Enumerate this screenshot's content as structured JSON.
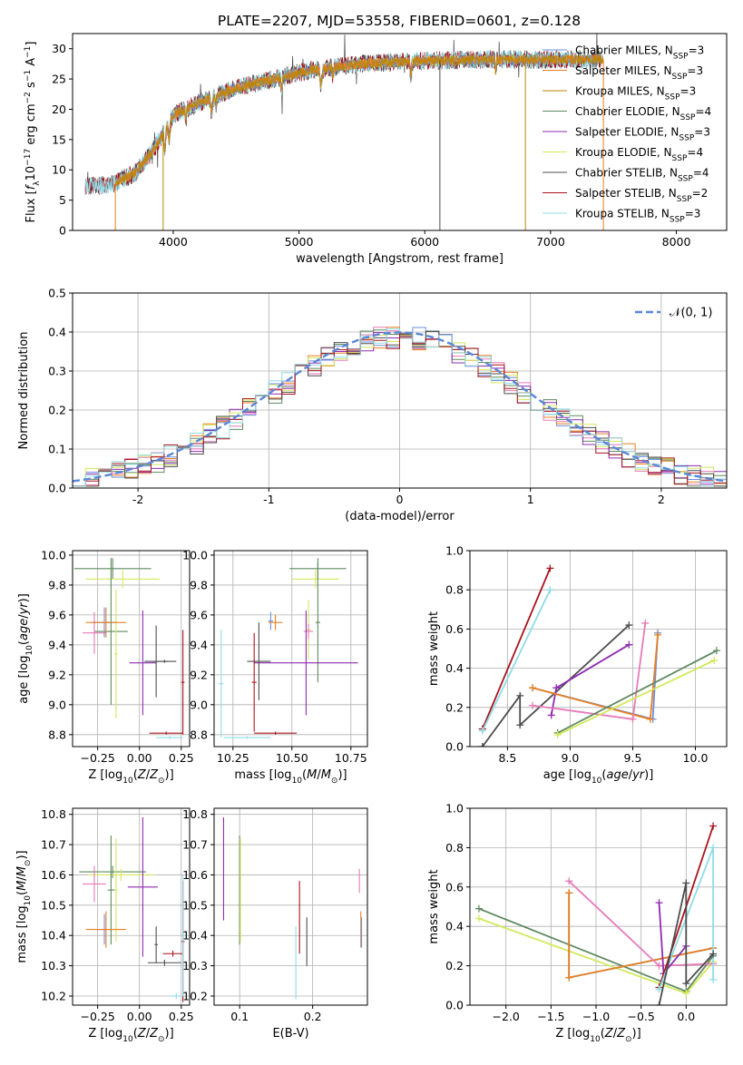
{
  "figure": {
    "title": "PLATE=2207, MJD=53558, FIBERID=0601, z=0.128"
  },
  "colors": {
    "chabrier_miles": "#6b8fe0",
    "salpeter_miles": "#e87f1f",
    "kroupa_miles": "#b8860b",
    "chabrier_elodie": "#5f8a5f",
    "salpeter_elodie": "#8e2bb0",
    "kroupa_elodie": "#d2e85a",
    "chabrier_stelib": "#4d4d4d",
    "salpeter_stelib": "#a8141c",
    "kroupa_stelib": "#8fdce6",
    "pink": "#e77ab8",
    "normal_curve": "#5b87d6"
  },
  "chart_data": [
    {
      "id": "spectrum",
      "type": "line",
      "xlabel": "wavelength [Angstrom, rest frame]",
      "ylabel": "Flux [f_λ 10^-17 erg cm^-2 s^-1 A^-1]",
      "xlim": [
        3200,
        8400
      ],
      "ylim": [
        0,
        32.5
      ],
      "xticks": [
        4000,
        5000,
        6000,
        7000,
        8000
      ],
      "yticks": [
        0,
        5,
        10,
        15,
        20,
        25,
        30
      ],
      "grid": false,
      "legend_position": "right",
      "continuum": {
        "x": [
          3300,
          3500,
          3700,
          3850,
          4000,
          4200,
          4500,
          4800,
          5100,
          5500,
          6000,
          6500,
          7000,
          7400
        ],
        "y": [
          7.3,
          7.5,
          9.5,
          13.5,
          19,
          21,
          23.5,
          25,
          26.5,
          27.5,
          28,
          28.2,
          28.2,
          28.3
        ]
      },
      "series": [
        {
          "name": "Chabrier MILES, N_SSP=3",
          "color_key": "chabrier_miles",
          "xmin": 3540,
          "xmax": 7420
        },
        {
          "name": "Salpeter MILES, N_SSP=3",
          "color_key": "salpeter_miles",
          "xmin": 3540,
          "xmax": 7420
        },
        {
          "name": "Kroupa MILES, N_SSP=3",
          "color_key": "kroupa_miles",
          "xmin": 3540,
          "xmax": 7420
        },
        {
          "name": "Chabrier ELODIE, N_SSP=4",
          "color_key": "chabrier_elodie",
          "xmin": 3920,
          "xmax": 6800
        },
        {
          "name": "Salpeter ELODIE, N_SSP=3",
          "color_key": "salpeter_elodie",
          "xmin": 3920,
          "xmax": 6800
        },
        {
          "name": "Kroupa ELODIE, N_SSP=4",
          "color_key": "kroupa_elodie",
          "xmin": 3920,
          "xmax": 6800
        },
        {
          "name": "Chabrier STELIB, N_SSP=4",
          "color_key": "chabrier_stelib",
          "xmin": 3300,
          "xmax": 7400
        },
        {
          "name": "Salpeter STELIB, N_SSP=2",
          "color_key": "salpeter_stelib",
          "xmin": 3300,
          "xmax": 7400
        },
        {
          "name": "Kroupa STELIB, N_SSP=3",
          "color_key": "kroupa_stelib",
          "xmin": 3300,
          "xmax": 7400
        }
      ],
      "vertical_drops": [
        {
          "x": 3540,
          "color_key": "salpeter_miles"
        },
        {
          "x": 3920,
          "color_key": "kroupa_miles"
        },
        {
          "x": 6120,
          "color_key": "chabrier_stelib"
        },
        {
          "x": 6800,
          "color_key": "kroupa_miles"
        },
        {
          "x": 7420,
          "color_key": "salpeter_miles"
        }
      ]
    },
    {
      "id": "residuals",
      "type": "area",
      "xlabel": "(data-model)/error",
      "ylabel": "Normed distribution",
      "xlim": [
        -2.5,
        2.5
      ],
      "ylim": [
        0,
        0.5
      ],
      "xticks": [
        -2,
        -1,
        0,
        1,
        2
      ],
      "yticks": [
        0.0,
        0.1,
        0.2,
        0.3,
        0.4,
        0.5
      ],
      "grid": true,
      "legend_position": "top-right",
      "legend_label": "𝒩(0, 1)",
      "bin_width": 0.1,
      "n_histograms": 9
    },
    {
      "id": "age_vs_Z",
      "type": "scatter",
      "xlabel": "Z [log10(Z/Z⊙)]",
      "ylabel": "age [log10(age/yr)]",
      "xlim": [
        -0.4,
        0.3
      ],
      "ylim": [
        8.72,
        10.03
      ],
      "xticks": [
        -0.25,
        0.0,
        0.25
      ],
      "xticklabels": [
        "−0.25",
        "0.00",
        "0.25"
      ],
      "yticks": [
        8.8,
        9.0,
        9.2,
        9.4,
        9.6,
        9.8,
        10.0
      ],
      "grid": true,
      "crosses": [
        {
          "x": -0.16,
          "xerr": 0.23,
          "y": 9.91,
          "yerr": 0.07,
          "color_key": "chabrier_elodie"
        },
        {
          "x": -0.1,
          "xerr": 0.22,
          "y": 9.84,
          "yerr": 0.06,
          "color_key": "kroupa_elodie"
        },
        {
          "x": -0.17,
          "xerr": 0.1,
          "y": 9.49,
          "yerr": 0.49,
          "color_key": "chabrier_elodie"
        },
        {
          "x": -0.14,
          "xerr": 0.01,
          "y": 9.34,
          "yerr": 0.43,
          "color_key": "kroupa_elodie"
        },
        {
          "x": -0.27,
          "xerr": 0.07,
          "y": 9.48,
          "yerr": 0.14,
          "color_key": "pink"
        },
        {
          "x": -0.21,
          "xerr": 0.07,
          "y": 9.55,
          "yerr": 0.1,
          "color_key": "chabrier_miles"
        },
        {
          "x": -0.2,
          "xerr": 0.12,
          "y": 9.55,
          "yerr": 0.1,
          "color_key": "salpeter_miles"
        },
        {
          "x": 0.02,
          "xerr": 0.08,
          "y": 9.28,
          "yerr": 0.35,
          "color_key": "salpeter_elodie"
        },
        {
          "x": 0.1,
          "xerr": 0.07,
          "y": 9.29,
          "yerr": 0.24,
          "color_key": "chabrier_stelib"
        },
        {
          "x": 0.15,
          "xerr": 0.07,
          "y": 9.29,
          "yerr": 0.01,
          "color_key": "chabrier_stelib"
        },
        {
          "x": 0.26,
          "xerr": 0.01,
          "y": 9.15,
          "yerr": 0.35,
          "color_key": "salpeter_stelib"
        },
        {
          "x": 0.16,
          "xerr": 0.1,
          "y": 8.81,
          "yerr": 0.01,
          "color_key": "salpeter_stelib"
        },
        {
          "x": 0.18,
          "xerr": 0.08,
          "y": 8.78,
          "yerr": 0.01,
          "color_key": "kroupa_stelib"
        }
      ]
    },
    {
      "id": "age_vs_mass",
      "type": "scatter",
      "xlabel": "mass [log10(M/M⊙)]",
      "ylabel": "",
      "xlim": [
        10.17,
        10.82
      ],
      "ylim": [
        8.72,
        10.03
      ],
      "xticks": [
        10.25,
        10.5,
        10.75
      ],
      "xticklabels": [
        "10.25",
        "10.50",
        "10.75"
      ],
      "yticks": [
        8.8,
        9.0,
        9.2,
        9.4,
        9.6,
        9.8,
        10.0
      ],
      "grid": true,
      "crosses": [
        {
          "x": 10.61,
          "xerr": 0.12,
          "y": 9.91,
          "yerr": 0.07,
          "color_key": "chabrier_elodie"
        },
        {
          "x": 10.6,
          "xerr": 0.1,
          "y": 9.84,
          "yerr": 0.06,
          "color_key": "kroupa_elodie"
        },
        {
          "x": 10.61,
          "xerr": 0.01,
          "y": 9.55,
          "yerr": 0.4,
          "color_key": "chabrier_elodie"
        },
        {
          "x": 10.57,
          "xerr": 0.01,
          "y": 9.5,
          "yerr": 0.2,
          "color_key": "kroupa_elodie"
        },
        {
          "x": 10.57,
          "xerr": 0.02,
          "y": 9.49,
          "yerr": 0.05,
          "color_key": "pink"
        },
        {
          "x": 10.41,
          "xerr": 0.01,
          "y": 9.56,
          "yerr": 0.06,
          "color_key": "chabrier_miles"
        },
        {
          "x": 10.43,
          "xerr": 0.03,
          "y": 9.55,
          "yerr": 0.05,
          "color_key": "salpeter_miles"
        },
        {
          "x": 10.56,
          "xerr": 0.22,
          "y": 9.28,
          "yerr": 0.35,
          "color_key": "salpeter_elodie"
        },
        {
          "x": 10.36,
          "xerr": 0.05,
          "y": 9.29,
          "yerr": 0.26,
          "color_key": "chabrier_stelib"
        },
        {
          "x": 10.34,
          "xerr": 0.01,
          "y": 9.15,
          "yerr": 0.33,
          "color_key": "salpeter_stelib"
        },
        {
          "x": 10.43,
          "xerr": 0.09,
          "y": 8.81,
          "yerr": 0.01,
          "color_key": "salpeter_stelib"
        },
        {
          "x": 10.2,
          "xerr": 0.01,
          "y": 9.14,
          "yerr": 0.36,
          "color_key": "kroupa_stelib"
        },
        {
          "x": 10.31,
          "xerr": 0.1,
          "y": 8.78,
          "yerr": 0.01,
          "color_key": "kroupa_stelib"
        }
      ]
    },
    {
      "id": "weight_vs_age",
      "type": "line",
      "xlabel": "age [log10(age/yr)]",
      "ylabel": "mass weight",
      "xlim": [
        8.2,
        10.25
      ],
      "ylim": [
        0,
        1
      ],
      "xticks": [
        8.5,
        9.0,
        9.5,
        10.0
      ],
      "xticklabels": [
        "8.5",
        "9.0",
        "9.5",
        "10.0"
      ],
      "yticks": [
        0.0,
        0.2,
        0.4,
        0.6,
        0.8,
        1.0
      ],
      "grid": true,
      "series": [
        {
          "color_key": "salpeter_stelib",
          "x": [
            8.3,
            8.84
          ],
          "y": [
            0.09,
            0.91
          ]
        },
        {
          "color_key": "kroupa_stelib",
          "x": [
            8.3,
            8.84
          ],
          "y": [
            0.08,
            0.8
          ]
        },
        {
          "color_key": "chabrier_stelib",
          "x": [
            8.3,
            8.6,
            8.6,
            9.47
          ],
          "y": [
            0.0,
            0.26,
            0.11,
            0.62
          ]
        },
        {
          "color_key": "salpeter_elodie",
          "x": [
            8.85,
            8.89,
            9.47
          ],
          "y": [
            0.16,
            0.3,
            0.52
          ]
        },
        {
          "color_key": "chabrier_miles",
          "x": [
            8.7,
            9.66,
            9.7
          ],
          "y": [
            0.3,
            0.14,
            0.58
          ]
        },
        {
          "color_key": "salpeter_miles",
          "x": [
            8.7,
            9.64,
            9.7
          ],
          "y": [
            0.3,
            0.14,
            0.57
          ]
        },
        {
          "color_key": "pink",
          "x": [
            8.7,
            9.5,
            9.6
          ],
          "y": [
            0.21,
            0.14,
            0.63
          ]
        },
        {
          "color_key": "chabrier_elodie",
          "x": [
            8.9,
            10.17
          ],
          "y": [
            0.07,
            0.49
          ]
        },
        {
          "color_key": "kroupa_elodie",
          "x": [
            8.9,
            10.15
          ],
          "y": [
            0.06,
            0.44
          ]
        }
      ]
    },
    {
      "id": "mass_vs_Z",
      "type": "scatter",
      "xlabel": "Z [log10(Z/Z⊙)]",
      "ylabel": "mass [log10(M/M⊙)]",
      "xlim": [
        -0.4,
        0.3
      ],
      "ylim": [
        10.17,
        10.82
      ],
      "xticks": [
        -0.25,
        0.0,
        0.25
      ],
      "xticklabels": [
        "−0.25",
        "0.00",
        "0.25"
      ],
      "yticks": [
        10.2,
        10.3,
        10.4,
        10.5,
        10.6,
        10.7,
        10.8
      ],
      "grid": true,
      "crosses": [
        {
          "x": -0.16,
          "xerr": 0.2,
          "y": 10.61,
          "yerr": 0.02,
          "color_key": "chabrier_elodie"
        },
        {
          "x": -0.11,
          "xerr": 0.2,
          "y": 10.6,
          "yerr": 0.02,
          "color_key": "kroupa_elodie"
        },
        {
          "x": -0.17,
          "xerr": 0.02,
          "y": 10.55,
          "yerr": 0.18,
          "color_key": "chabrier_elodie"
        },
        {
          "x": -0.14,
          "xerr": 0.01,
          "y": 10.55,
          "yerr": 0.17,
          "color_key": "kroupa_elodie"
        },
        {
          "x": -0.27,
          "xerr": 0.07,
          "y": 10.57,
          "yerr": 0.06,
          "color_key": "pink"
        },
        {
          "x": -0.21,
          "xerr": 0.05,
          "y": 10.42,
          "yerr": 0.05,
          "color_key": "chabrier_miles"
        },
        {
          "x": -0.2,
          "xerr": 0.12,
          "y": 10.42,
          "yerr": 0.06,
          "color_key": "salpeter_miles"
        },
        {
          "x": 0.02,
          "xerr": 0.09,
          "y": 10.56,
          "yerr": 0.23,
          "color_key": "salpeter_elodie"
        },
        {
          "x": 0.1,
          "xerr": 0.01,
          "y": 10.37,
          "yerr": 0.06,
          "color_key": "chabrier_stelib"
        },
        {
          "x": 0.15,
          "xerr": 0.1,
          "y": 10.31,
          "yerr": 0.01,
          "color_key": "chabrier_stelib"
        },
        {
          "x": 0.2,
          "xerr": 0.06,
          "y": 10.34,
          "yerr": 0.01,
          "color_key": "salpeter_stelib"
        },
        {
          "x": 0.26,
          "xerr": 0.01,
          "y": 10.38,
          "yerr": 0.2,
          "color_key": "salpeter_stelib"
        },
        {
          "x": 0.22,
          "xerr": 0.04,
          "y": 10.2,
          "yerr": 0.01,
          "color_key": "kroupa_stelib"
        },
        {
          "x": 0.26,
          "xerr": 0.01,
          "y": 10.4,
          "yerr": 0.2,
          "color_key": "kroupa_stelib"
        }
      ]
    },
    {
      "id": "mass_vs_ebv",
      "type": "scatter",
      "xlabel": "E(B-V)",
      "ylabel": "",
      "xlim": [
        0.065,
        0.275
      ],
      "ylim": [
        10.17,
        10.82
      ],
      "xticks": [
        0.1,
        0.2
      ],
      "xticklabels": [
        "0.1",
        "0.2"
      ],
      "yticks": [
        10.2,
        10.3,
        10.4,
        10.5,
        10.6,
        10.7,
        10.8
      ],
      "grid": true,
      "crosses": [
        {
          "x": 0.078,
          "xerr": 0.0,
          "y": 10.62,
          "yerr": 0.17,
          "color_key": "salpeter_elodie"
        },
        {
          "x": 0.1,
          "xerr": 0.0,
          "y": 10.55,
          "yerr": 0.18,
          "color_key": "chabrier_elodie"
        },
        {
          "x": 0.101,
          "xerr": 0.0,
          "y": 10.55,
          "yerr": 0.17,
          "color_key": "kroupa_elodie"
        },
        {
          "x": 0.177,
          "xerr": 0.0,
          "y": 10.31,
          "yerr": 0.12,
          "color_key": "kroupa_stelib"
        },
        {
          "x": 0.182,
          "xerr": 0.0,
          "y": 10.46,
          "yerr": 0.12,
          "color_key": "salpeter_stelib"
        },
        {
          "x": 0.192,
          "xerr": 0.0,
          "y": 10.38,
          "yerr": 0.08,
          "color_key": "chabrier_stelib"
        },
        {
          "x": 0.264,
          "xerr": 0.0,
          "y": 10.58,
          "yerr": 0.04,
          "color_key": "pink"
        },
        {
          "x": 0.266,
          "xerr": 0.0,
          "y": 10.42,
          "yerr": 0.06,
          "color_key": "salpeter_miles"
        },
        {
          "x": 0.267,
          "xerr": 0.0,
          "y": 10.41,
          "yerr": 0.05,
          "color_key": "chabrier_miles"
        }
      ]
    },
    {
      "id": "weight_vs_Z",
      "type": "line",
      "xlabel": "Z [log10(Z/Z⊙)]",
      "ylabel": "mass weight",
      "xlim": [
        -2.4,
        0.45
      ],
      "ylim": [
        0,
        1
      ],
      "xticks": [
        -2.0,
        -1.5,
        -1.0,
        -0.5,
        0.0
      ],
      "xticklabels": [
        "−2.0",
        "−1.5",
        "−1.0",
        "−0.5",
        "0.0"
      ],
      "yticks": [
        0.0,
        0.2,
        0.4,
        0.6,
        0.8,
        1.0
      ],
      "grid": true,
      "series": [
        {
          "color_key": "chabrier_elodie",
          "x": [
            -2.3,
            0.0,
            0.3
          ],
          "y": [
            0.49,
            0.07,
            0.25
          ]
        },
        {
          "color_key": "kroupa_elodie",
          "x": [
            -2.3,
            0.0,
            0.3
          ],
          "y": [
            0.44,
            0.06,
            0.22
          ]
        },
        {
          "color_key": "chabrier_miles",
          "x": [
            -1.3,
            -1.3,
            0.3
          ],
          "y": [
            0.57,
            0.14,
            0.29
          ]
        },
        {
          "color_key": "salpeter_miles",
          "x": [
            -1.3,
            -1.3,
            0.3
          ],
          "y": [
            0.57,
            0.14,
            0.29
          ]
        },
        {
          "color_key": "pink",
          "x": [
            -1.3,
            -0.3,
            0.3
          ],
          "y": [
            0.63,
            0.2,
            0.21
          ]
        },
        {
          "color_key": "salpeter_elodie",
          "x": [
            -0.3,
            -0.25,
            0.0
          ],
          "y": [
            0.52,
            0.16,
            0.3
          ]
        },
        {
          "color_key": "salpeter_stelib",
          "x": [
            -0.3,
            0.3
          ],
          "y": [
            0.09,
            0.91
          ]
        },
        {
          "color_key": "kroupa_stelib",
          "x": [
            -0.3,
            0.3,
            0.3
          ],
          "y": [
            0.08,
            0.8,
            0.13
          ]
        },
        {
          "color_key": "chabrier_stelib",
          "x": [
            -0.3,
            0.0,
            0.0,
            0.3
          ],
          "y": [
            0.0,
            0.62,
            0.11,
            0.26
          ]
        }
      ]
    }
  ]
}
